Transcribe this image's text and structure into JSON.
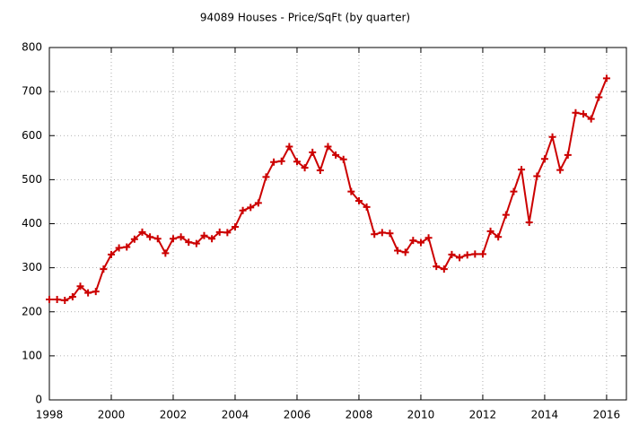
{
  "chart_data": {
    "type": "line",
    "title": "94089 Houses - Price/SqFt (by quarter)",
    "x": [
      1998,
      1998.25,
      1998.5,
      1998.75,
      1999,
      1999.25,
      1999.5,
      1999.75,
      2000,
      2000.25,
      2000.5,
      2000.75,
      2001,
      2001.25,
      2001.5,
      2001.75,
      2002,
      2002.25,
      2002.5,
      2002.75,
      2003,
      2003.25,
      2003.5,
      2003.75,
      2004,
      2004.25,
      2004.5,
      2004.75,
      2005,
      2005.25,
      2005.5,
      2005.75,
      2006,
      2006.25,
      2006.5,
      2006.75,
      2007,
      2007.25,
      2007.5,
      2007.75,
      2008,
      2008.25,
      2008.5,
      2008.75,
      2009,
      2009.25,
      2009.5,
      2009.75,
      2010,
      2010.25,
      2010.5,
      2010.75,
      2011,
      2011.25,
      2011.5,
      2011.75,
      2012,
      2012.25,
      2012.5,
      2012.75,
      2013,
      2013.25,
      2013.5,
      2013.75,
      2014,
      2014.25,
      2014.5,
      2014.75,
      2015,
      2015.25,
      2015.5,
      2015.75,
      2016
    ],
    "values": [
      228,
      228,
      226,
      234,
      258,
      243,
      246,
      297,
      330,
      345,
      347,
      365,
      381,
      370,
      366,
      333,
      366,
      370,
      358,
      355,
      373,
      366,
      381,
      380,
      393,
      430,
      437,
      447,
      506,
      540,
      542,
      575,
      541,
      527,
      562,
      521,
      575,
      556,
      546,
      473,
      452,
      438,
      376,
      380,
      378,
      339,
      335,
      362,
      357,
      368,
      303,
      297,
      330,
      323,
      329,
      331,
      331,
      383,
      370,
      420,
      473,
      523,
      403,
      508,
      547,
      597,
      522,
      556,
      652,
      649,
      638,
      687,
      730
    ],
    "color": "#cc0000",
    "xlim": [
      1998,
      2016.64
    ],
    "xticks": [
      1998,
      2000,
      2002,
      2004,
      2006,
      2008,
      2010,
      2012,
      2014,
      2016
    ],
    "ylim": [
      0,
      800
    ],
    "yticks": [
      0,
      100,
      200,
      300,
      400,
      500,
      600,
      700,
      800
    ],
    "grid": true
  }
}
